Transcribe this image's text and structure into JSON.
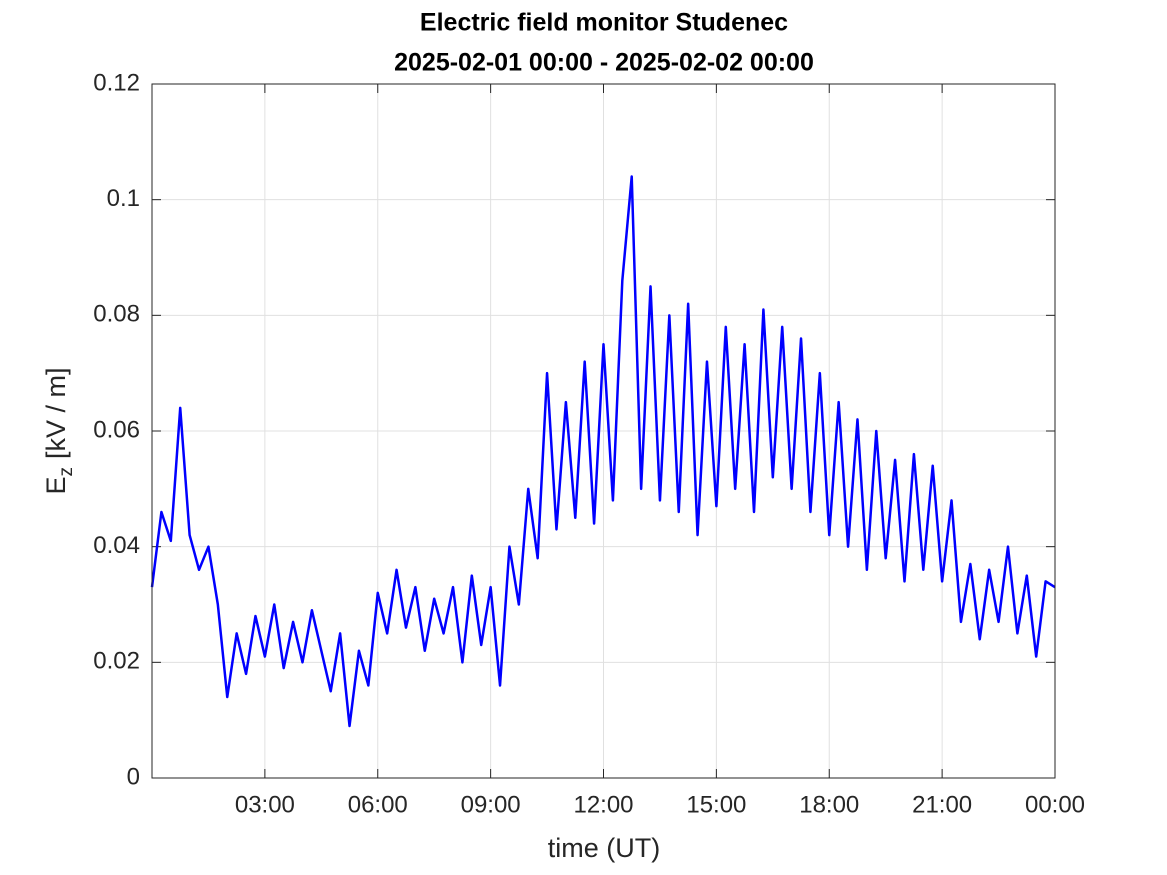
{
  "chart_data": {
    "type": "line",
    "title": "Electric field monitor Studenec",
    "subtitle": "2025-02-01 00:00 - 2025-02-02 00:00",
    "xlabel": "time (UT)",
    "ylabel": {
      "main": "E",
      "subscript": "z",
      "unit": "[kV / m]"
    },
    "xlim": [
      0,
      24
    ],
    "xticks": [
      {
        "value": 3,
        "label": "03:00"
      },
      {
        "value": 6,
        "label": "06:00"
      },
      {
        "value": 9,
        "label": "09:00"
      },
      {
        "value": 12,
        "label": "12:00"
      },
      {
        "value": 15,
        "label": "15:00"
      },
      {
        "value": 18,
        "label": "18:00"
      },
      {
        "value": 21,
        "label": "21:00"
      },
      {
        "value": 24,
        "label": "00:00"
      }
    ],
    "ylim": [
      0,
      0.12
    ],
    "yticks": [
      0,
      0.02,
      0.04,
      0.06,
      0.08,
      0.1,
      0.12
    ],
    "grid": true,
    "series": [
      {
        "name": "Ez",
        "color": "#0000ff",
        "x": [
          0,
          0.25,
          0.5,
          0.75,
          1,
          1.25,
          1.5,
          1.75,
          2,
          2.25,
          2.5,
          2.75,
          3,
          3.25,
          3.5,
          3.75,
          4,
          4.25,
          4.5,
          4.75,
          5,
          5.25,
          5.5,
          5.75,
          6,
          6.25,
          6.5,
          6.75,
          7,
          7.25,
          7.5,
          7.75,
          8,
          8.25,
          8.5,
          8.75,
          9,
          9.25,
          9.5,
          9.75,
          10,
          10.25,
          10.5,
          10.75,
          11,
          11.25,
          11.5,
          11.75,
          12,
          12.25,
          12.5,
          12.75,
          13,
          13.25,
          13.5,
          13.75,
          14,
          14.25,
          14.5,
          14.75,
          15,
          15.25,
          15.5,
          15.75,
          16,
          16.25,
          16.5,
          16.75,
          17,
          17.25,
          17.5,
          17.75,
          18,
          18.25,
          18.5,
          18.75,
          19,
          19.25,
          19.5,
          19.75,
          20,
          20.25,
          20.5,
          20.75,
          21,
          21.25,
          21.5,
          21.75,
          22,
          22.25,
          22.5,
          22.75,
          23,
          23.25,
          23.5,
          23.75,
          24
        ],
        "values": [
          0.033,
          0.046,
          0.041,
          0.064,
          0.042,
          0.036,
          0.04,
          0.03,
          0.014,
          0.025,
          0.018,
          0.028,
          0.021,
          0.03,
          0.019,
          0.027,
          0.02,
          0.029,
          0.022,
          0.015,
          0.025,
          0.009,
          0.022,
          0.016,
          0.032,
          0.025,
          0.036,
          0.026,
          0.033,
          0.022,
          0.031,
          0.025,
          0.033,
          0.02,
          0.035,
          0.023,
          0.033,
          0.016,
          0.04,
          0.03,
          0.05,
          0.038,
          0.07,
          0.043,
          0.065,
          0.045,
          0.072,
          0.044,
          0.075,
          0.048,
          0.086,
          0.104,
          0.05,
          0.085,
          0.048,
          0.08,
          0.046,
          0.082,
          0.042,
          0.072,
          0.047,
          0.078,
          0.05,
          0.075,
          0.046,
          0.081,
          0.052,
          0.078,
          0.05,
          0.076,
          0.046,
          0.07,
          0.042,
          0.065,
          0.04,
          0.062,
          0.036,
          0.06,
          0.038,
          0.055,
          0.034,
          0.056,
          0.036,
          0.054,
          0.034,
          0.048,
          0.027,
          0.037,
          0.024,
          0.036,
          0.027,
          0.04,
          0.025,
          0.035,
          0.021,
          0.034,
          0.033
        ]
      }
    ]
  }
}
